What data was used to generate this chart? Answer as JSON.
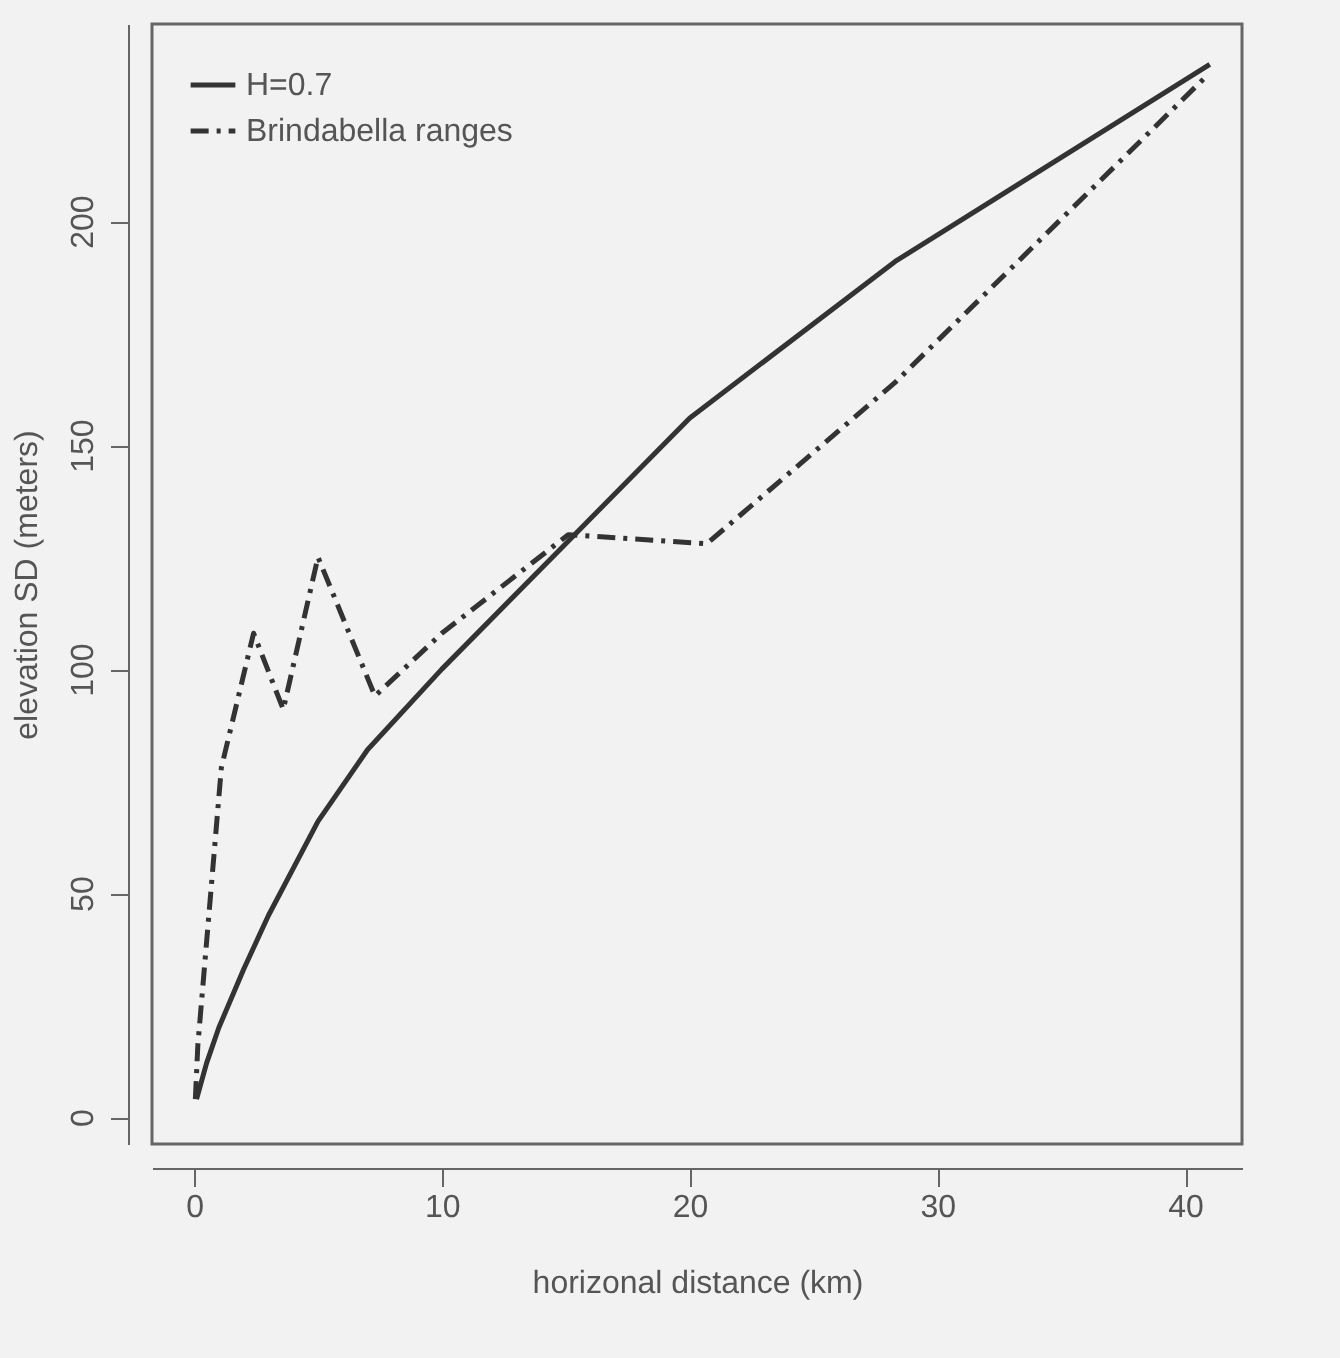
{
  "chart_data": {
    "type": "line",
    "xlabel": "horizonal distance (km)",
    "ylabel": "elevation SD (meters)",
    "xlim": [
      -1.7,
      42.3
    ],
    "ylim": [
      -6,
      244
    ],
    "xticks": [
      0,
      10,
      20,
      30,
      40
    ],
    "yticks": [
      0,
      50,
      100,
      150,
      200
    ],
    "grid": false,
    "legend": "top left",
    "series": [
      {
        "name": "H=0.7",
        "color": "#333333",
        "line_style": "solid",
        "x": [
          0.1,
          0.5,
          1,
          2,
          3,
          5,
          7,
          10,
          15,
          20,
          28.3,
          41
        ],
        "values": [
          4,
          12,
          20,
          33,
          45,
          66,
          82,
          100,
          128,
          156,
          191,
          235
        ]
      },
      {
        "name": "Brindabella ranges",
        "color": "#333333",
        "line_style": "dashed",
        "x": [
          0.05,
          0.15,
          1.1,
          2.4,
          3.6,
          5,
          7.3,
          10,
          15.1,
          20.7,
          28.3,
          40.8
        ],
        "values": [
          4,
          16,
          78,
          108,
          91,
          125,
          94,
          108,
          130,
          128,
          164,
          232
        ]
      }
    ]
  }
}
